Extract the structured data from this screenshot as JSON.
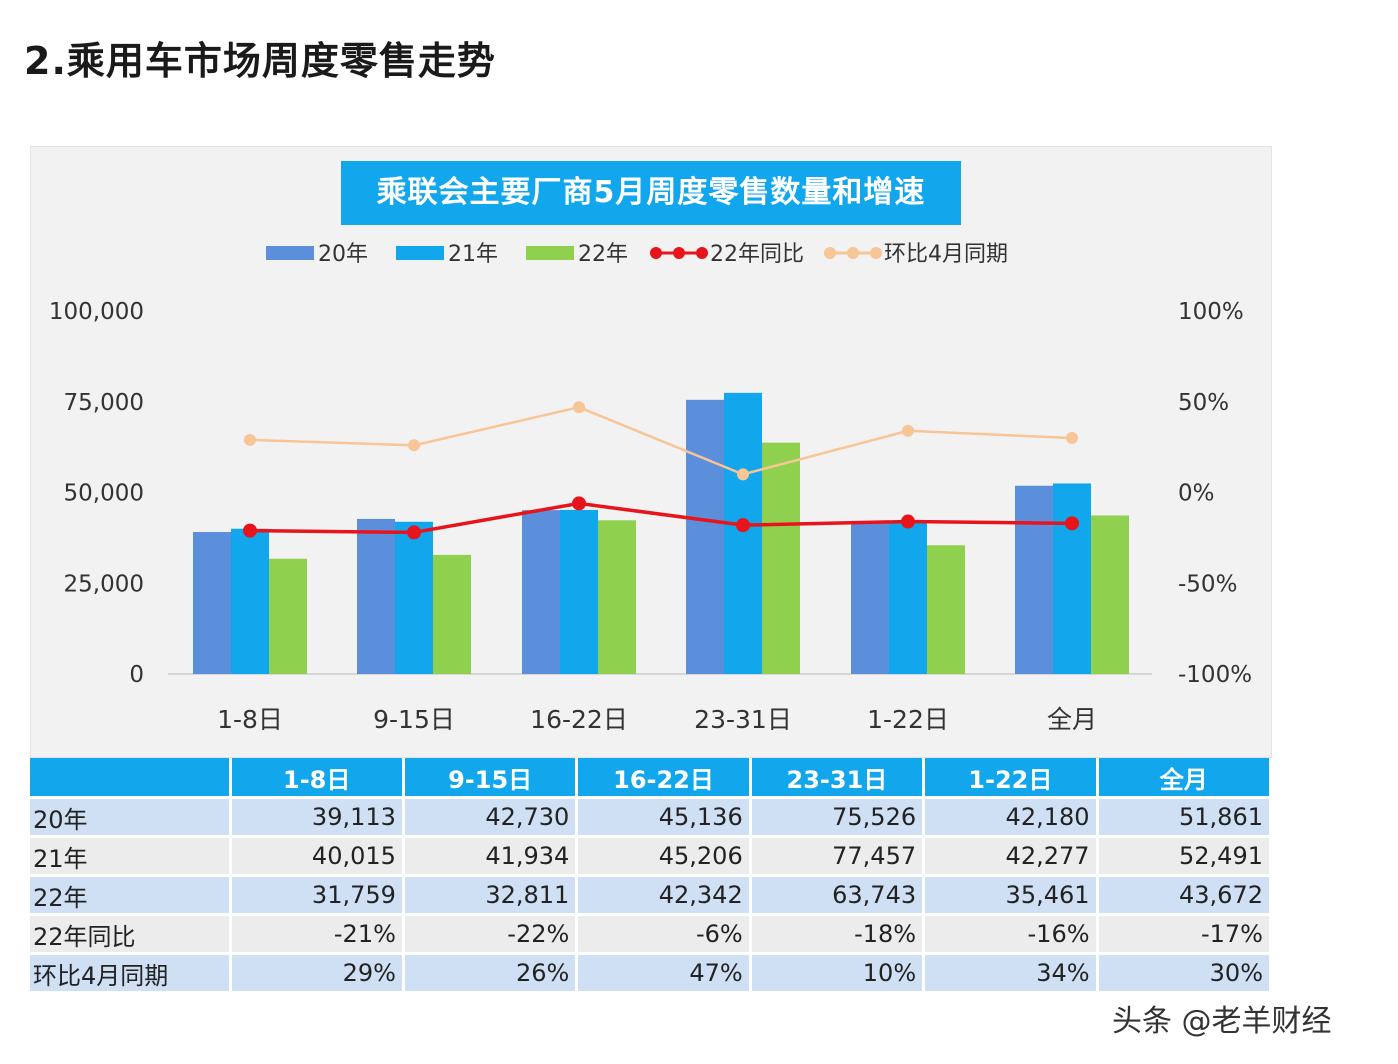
{
  "page": {
    "heading": "2.乘用车市场周度零售走势",
    "watermark": "头条 @老羊财经"
  },
  "chart_data": {
    "type": "bar",
    "title": "乘联会主要厂商5月周度零售数量和增速",
    "categories": [
      "1-8日",
      "9-15日",
      "16-22日",
      "23-31日",
      "1-22日",
      "全月"
    ],
    "series": [
      {
        "name": "20年",
        "kind": "bar",
        "axis": "left",
        "color": "#5b8fdc",
        "values": [
          39113,
          42730,
          45136,
          75526,
          42180,
          51861
        ]
      },
      {
        "name": "21年",
        "kind": "bar",
        "axis": "left",
        "color": "#12a6ec",
        "values": [
          40015,
          41934,
          45206,
          77457,
          42277,
          52491
        ]
      },
      {
        "name": "22年",
        "kind": "bar",
        "axis": "left",
        "color": "#8fd14f",
        "values": [
          31759,
          32811,
          42342,
          63743,
          35461,
          43672
        ]
      },
      {
        "name": "22年同比",
        "kind": "line",
        "axis": "right",
        "color": "#e8141c",
        "values": [
          -21,
          -22,
          -6,
          -18,
          -16,
          -17
        ]
      },
      {
        "name": "环比4月同期",
        "kind": "line",
        "axis": "right",
        "color": "#f7c596",
        "values": [
          29,
          26,
          47,
          10,
          34,
          30
        ]
      }
    ],
    "left_axis": {
      "min": 0,
      "max": 100000,
      "ticks": [
        "0",
        "25,000",
        "50,000",
        "75,000",
        "100,000"
      ]
    },
    "right_axis": {
      "min": -100,
      "max": 100,
      "ticks": [
        "-100%",
        "-50%",
        "0%",
        "50%",
        "100%"
      ]
    },
    "legend_position": "top",
    "grid": false
  },
  "table": {
    "headers": [
      "",
      "1-8日",
      "9-15日",
      "16-22日",
      "23-31日",
      "1-22日",
      "全月"
    ],
    "rows": [
      {
        "label": "20年",
        "cells": [
          "39,113",
          "42,730",
          "45,136",
          "75,526",
          "42,180",
          "51,861"
        ]
      },
      {
        "label": "21年",
        "cells": [
          "40,015",
          "41,934",
          "45,206",
          "77,457",
          "42,277",
          "52,491"
        ]
      },
      {
        "label": "22年",
        "cells": [
          "31,759",
          "32,811",
          "42,342",
          "63,743",
          "35,461",
          "43,672"
        ]
      },
      {
        "label": "22年同比",
        "cells": [
          "-21%",
          "-22%",
          "-6%",
          "-18%",
          "-16%",
          "-17%"
        ]
      },
      {
        "label": "环比4月同期",
        "cells": [
          "29%",
          "26%",
          "47%",
          "10%",
          "34%",
          "30%"
        ]
      }
    ]
  }
}
